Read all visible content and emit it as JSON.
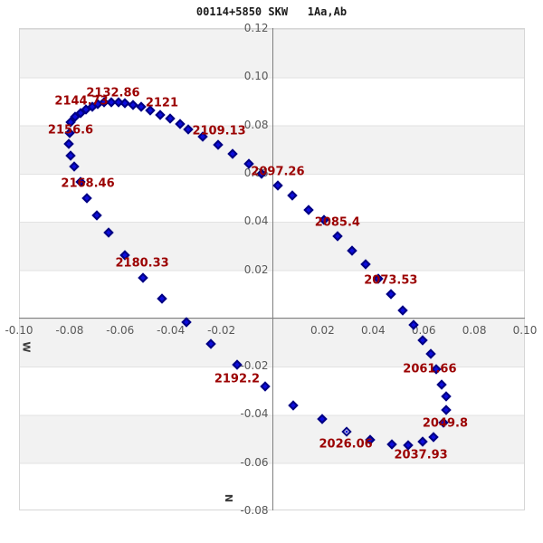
{
  "colors": {
    "marker_fill": "#0d0ddd",
    "marker_edge": "#000080",
    "epoch_label": "#9b0000",
    "band_gray": "#f2f2f2",
    "axis_line": "#7f7f7f",
    "tick_text": "#585858"
  },
  "chart_data": {
    "type": "scatter",
    "title": "00114+5850 SKW   1Aa,Ab",
    "xlabel": "W",
    "ylabel": "N",
    "xlim": [
      -0.1,
      0.1
    ],
    "ylim": [
      -0.08,
      0.12
    ],
    "x_ticks": [
      -0.1,
      -0.08,
      -0.06,
      -0.04,
      -0.02,
      0.02,
      0.04,
      0.06,
      0.08,
      0.1
    ],
    "y_ticks": [
      0.12,
      0.1,
      0.08,
      0.06,
      0.04,
      0.02,
      -0.02,
      -0.04,
      -0.06,
      -0.08
    ],
    "grid": "alternating-horizontal-bands",
    "legend": "none",
    "marker": "diamond",
    "open_point_index": 0,
    "series": [
      {
        "name": "orbit-ephemeris",
        "points": [
          [
            0.0295,
            -0.0474
          ],
          [
            0.0388,
            -0.0507
          ],
          [
            0.0474,
            -0.0526
          ],
          [
            0.0538,
            -0.053
          ],
          [
            0.0596,
            -0.0515
          ],
          [
            0.0639,
            -0.0496
          ],
          [
            0.0678,
            -0.0436
          ],
          [
            0.0689,
            -0.0384
          ],
          [
            0.0689,
            -0.0327
          ],
          [
            0.0671,
            -0.0278
          ],
          [
            0.0649,
            -0.0215
          ],
          [
            0.0628,
            -0.0151
          ],
          [
            0.0596,
            -0.0095
          ],
          [
            0.056,
            -0.0031
          ],
          [
            0.0517,
            0.0029
          ],
          [
            0.047,
            0.0097
          ],
          [
            0.042,
            0.0161
          ],
          [
            0.037,
            0.0221
          ],
          [
            0.0317,
            0.0277
          ],
          [
            0.0259,
            0.0337
          ],
          [
            0.0206,
            0.0404
          ],
          [
            0.0145,
            0.0446
          ],
          [
            0.0081,
            0.0506
          ],
          [
            0.0023,
            0.0547
          ],
          [
            -0.0041,
            0.0596
          ],
          [
            -0.0091,
            0.0637
          ],
          [
            -0.0156,
            0.0678
          ],
          [
            -0.0213,
            0.0716
          ],
          [
            -0.0274,
            0.075
          ],
          [
            -0.0331,
            0.078
          ],
          [
            -0.0363,
            0.0802
          ],
          [
            -0.0402,
            0.0825
          ],
          [
            -0.0442,
            0.084
          ],
          [
            -0.0481,
            0.0859
          ],
          [
            -0.0517,
            0.0874
          ],
          [
            -0.0549,
            0.0881
          ],
          [
            -0.0581,
            0.0889
          ],
          [
            -0.0606,
            0.0892
          ],
          [
            -0.0635,
            0.0892
          ],
          [
            -0.0664,
            0.0892
          ],
          [
            -0.0689,
            0.0885
          ],
          [
            -0.071,
            0.0874
          ],
          [
            -0.0735,
            0.0862
          ],
          [
            -0.0757,
            0.0847
          ],
          [
            -0.0778,
            0.0832
          ],
          [
            -0.0796,
            0.081
          ],
          [
            -0.08,
            0.0765
          ],
          [
            -0.0803,
            0.072
          ],
          [
            -0.0796,
            0.0671
          ],
          [
            -0.0782,
            0.0626
          ],
          [
            -0.0757,
            0.0562
          ],
          [
            -0.0732,
            0.0495
          ],
          [
            -0.0692,
            0.0423
          ],
          [
            -0.0646,
            0.0352
          ],
          [
            -0.0581,
            0.0258
          ],
          [
            -0.051,
            0.0164
          ],
          [
            -0.0435,
            0.0078
          ],
          [
            -0.0338,
            -0.002
          ],
          [
            -0.0242,
            -0.011
          ],
          [
            -0.0138,
            -0.0196
          ],
          [
            -0.0027,
            -0.0286
          ],
          [
            0.0084,
            -0.0365
          ],
          [
            0.0199,
            -0.0421
          ]
        ]
      }
    ],
    "epoch_labels": [
      {
        "text": "2026.06",
        "x": 0.0292,
        "y": -0.0526
      },
      {
        "text": "2037.93",
        "x": 0.0589,
        "y": -0.0571
      },
      {
        "text": "2049.8",
        "x": 0.0685,
        "y": -0.044
      },
      {
        "text": "2061.66",
        "x": 0.0624,
        "y": -0.0215
      },
      {
        "text": "2073.53",
        "x": 0.047,
        "y": 0.0153
      },
      {
        "text": "2085.4",
        "x": 0.0259,
        "y": 0.0393
      },
      {
        "text": "2097.26",
        "x": 0.0023,
        "y": 0.0603
      },
      {
        "text": "2109.13",
        "x": -0.0209,
        "y": 0.0772
      },
      {
        "text": "2121",
        "x": -0.0435,
        "y": 0.0889
      },
      {
        "text": "2132.86",
        "x": -0.0628,
        "y": 0.093
      },
      {
        "text": "2144.73",
        "x": -0.0753,
        "y": 0.0896
      },
      {
        "text": "2156.6",
        "x": -0.0796,
        "y": 0.0776
      },
      {
        "text": "2168.46",
        "x": -0.0728,
        "y": 0.0555
      },
      {
        "text": "2180.33",
        "x": -0.0513,
        "y": 0.0224
      },
      {
        "text": "2192.2",
        "x": -0.0138,
        "y": -0.0256
      }
    ]
  }
}
